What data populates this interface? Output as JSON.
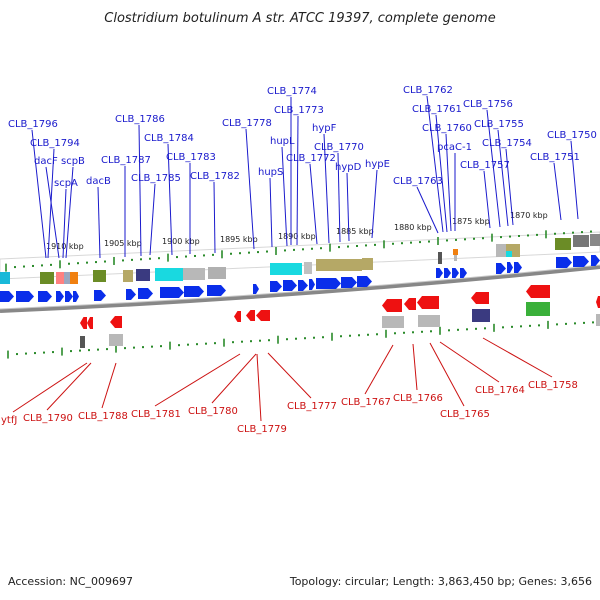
{
  "title": "Clostridium botulinum A str. ATCC 19397, complete genome",
  "footer": {
    "accession": "Accession: NC_009697",
    "topology": "Topology: circular; Length: 3,863,450 bp; Genes: 3,656"
  },
  "colors": {
    "forward_label": "#1a1acc",
    "reverse_label": "#cc1111",
    "forward_arrow": "#0a2eea",
    "reverse_arrow": "#ee1111",
    "backbone": "#888888",
    "tick": "#2a8a2a"
  },
  "scale_labels": [
    "1910 kbp",
    "1905 kbp",
    "1900 kbp",
    "1895 kbp",
    "1890 kbp",
    "1885 kbp",
    "1880 kbp",
    "1875 kbp",
    "1870 kbp"
  ],
  "forward_genes": [
    "CLB_1796",
    "CLB_1794",
    "dacF",
    "scpB",
    "scpA",
    "dacB",
    "CLB_1787",
    "CLB_1786",
    "CLB_1785",
    "CLB_1784",
    "CLB_1783",
    "CLB_1782",
    "CLB_1778",
    "CLB_1774",
    "CLB_1773",
    "hupL",
    "hupS",
    "hypF",
    "CLB_1772",
    "CLB_1770",
    "hypD",
    "hypE",
    "CLB_1762",
    "CLB_1761",
    "CLB_1760",
    "pcaC-1",
    "CLB_1763",
    "CLB_1756",
    "CLB_1755",
    "CLB_1754",
    "CLB_1757",
    "CLB_1750",
    "CLB_1751"
  ],
  "reverse_genes": [
    "ytfJ",
    "CLB_1790",
    "CLB_1788",
    "CLB_1781",
    "CLB_1780",
    "CLB_1779",
    "CLB_1777",
    "CLB_1767",
    "CLB_1766",
    "CLB_1765",
    "CLB_1764",
    "CLB_1758"
  ]
}
